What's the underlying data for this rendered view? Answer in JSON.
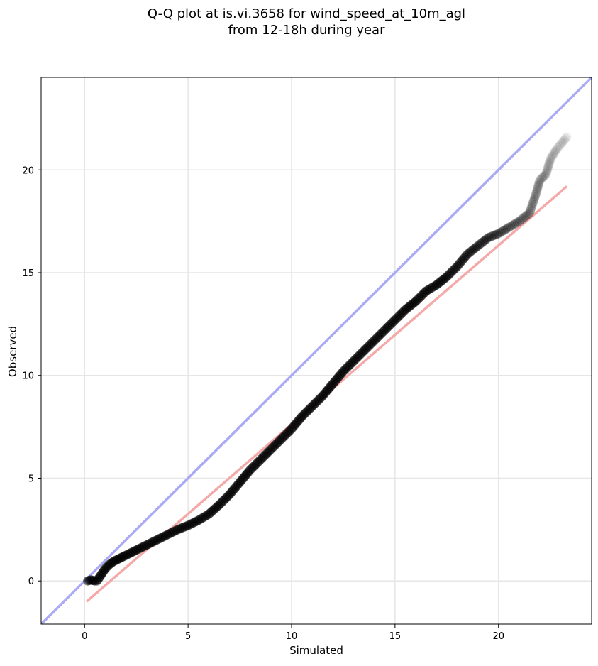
{
  "chart_data": {
    "type": "scatter",
    "title": "Q-Q plot at is.vi.3658 for wind_speed_at_10m_agl",
    "subtitle": "from 12-18h during year",
    "xlabel": "Simulated",
    "ylabel": "Observed",
    "xlim": [
      -2.1,
      24.5
    ],
    "ylim": [
      -2.1,
      24.5
    ],
    "xticks": [
      0,
      5,
      10,
      15,
      20
    ],
    "yticks": [
      0,
      5,
      10,
      15,
      20
    ],
    "grid": true,
    "colors": {
      "points": "#000000",
      "identity_line": "#aaaaf5",
      "fit_line": "#f5aaaa"
    },
    "identity_line": {
      "x": [
        -2.1,
        24.5
      ],
      "y": [
        -2.1,
        24.5
      ]
    },
    "fit_line": {
      "x": [
        0.1,
        23.3
      ],
      "y": [
        -1.0,
        19.2
      ]
    },
    "quantile_points": [
      [
        0.15,
        0.0
      ],
      [
        0.3,
        0.05
      ],
      [
        0.5,
        0.0
      ],
      [
        0.6,
        0.0
      ],
      [
        0.7,
        0.15
      ],
      [
        0.8,
        0.3
      ],
      [
        0.9,
        0.45
      ],
      [
        1.0,
        0.6
      ],
      [
        1.2,
        0.8
      ],
      [
        1.4,
        0.95
      ],
      [
        1.6,
        1.05
      ],
      [
        1.8,
        1.15
      ],
      [
        2.0,
        1.25
      ],
      [
        2.3,
        1.4
      ],
      [
        2.6,
        1.55
      ],
      [
        3.0,
        1.75
      ],
      [
        3.5,
        2.0
      ],
      [
        4.0,
        2.25
      ],
      [
        4.5,
        2.5
      ],
      [
        5.0,
        2.7
      ],
      [
        5.5,
        2.95
      ],
      [
        6.0,
        3.25
      ],
      [
        6.5,
        3.7
      ],
      [
        7.0,
        4.2
      ],
      [
        7.5,
        4.8
      ],
      [
        8.0,
        5.4
      ],
      [
        8.5,
        5.9
      ],
      [
        9.0,
        6.4
      ],
      [
        9.5,
        6.9
      ],
      [
        10.0,
        7.4
      ],
      [
        10.5,
        8.0
      ],
      [
        11.0,
        8.5
      ],
      [
        11.5,
        9.0
      ],
      [
        12.0,
        9.6
      ],
      [
        12.5,
        10.2
      ],
      [
        13.0,
        10.7
      ],
      [
        13.5,
        11.2
      ],
      [
        14.0,
        11.7
      ],
      [
        14.5,
        12.2
      ],
      [
        15.0,
        12.7
      ],
      [
        15.5,
        13.2
      ],
      [
        16.0,
        13.6
      ],
      [
        16.5,
        14.1
      ],
      [
        17.0,
        14.4
      ],
      [
        17.5,
        14.8
      ],
      [
        18.0,
        15.3
      ],
      [
        18.5,
        15.9
      ],
      [
        19.0,
        16.3
      ],
      [
        19.5,
        16.7
      ],
      [
        20.0,
        16.9
      ],
      [
        20.5,
        17.2
      ],
      [
        21.0,
        17.5
      ],
      [
        21.5,
        17.9
      ],
      [
        21.8,
        18.8
      ],
      [
        22.0,
        19.5
      ],
      [
        22.3,
        19.8
      ],
      [
        22.5,
        20.5
      ],
      [
        22.8,
        21.0
      ],
      [
        23.3,
        21.6
      ]
    ]
  }
}
